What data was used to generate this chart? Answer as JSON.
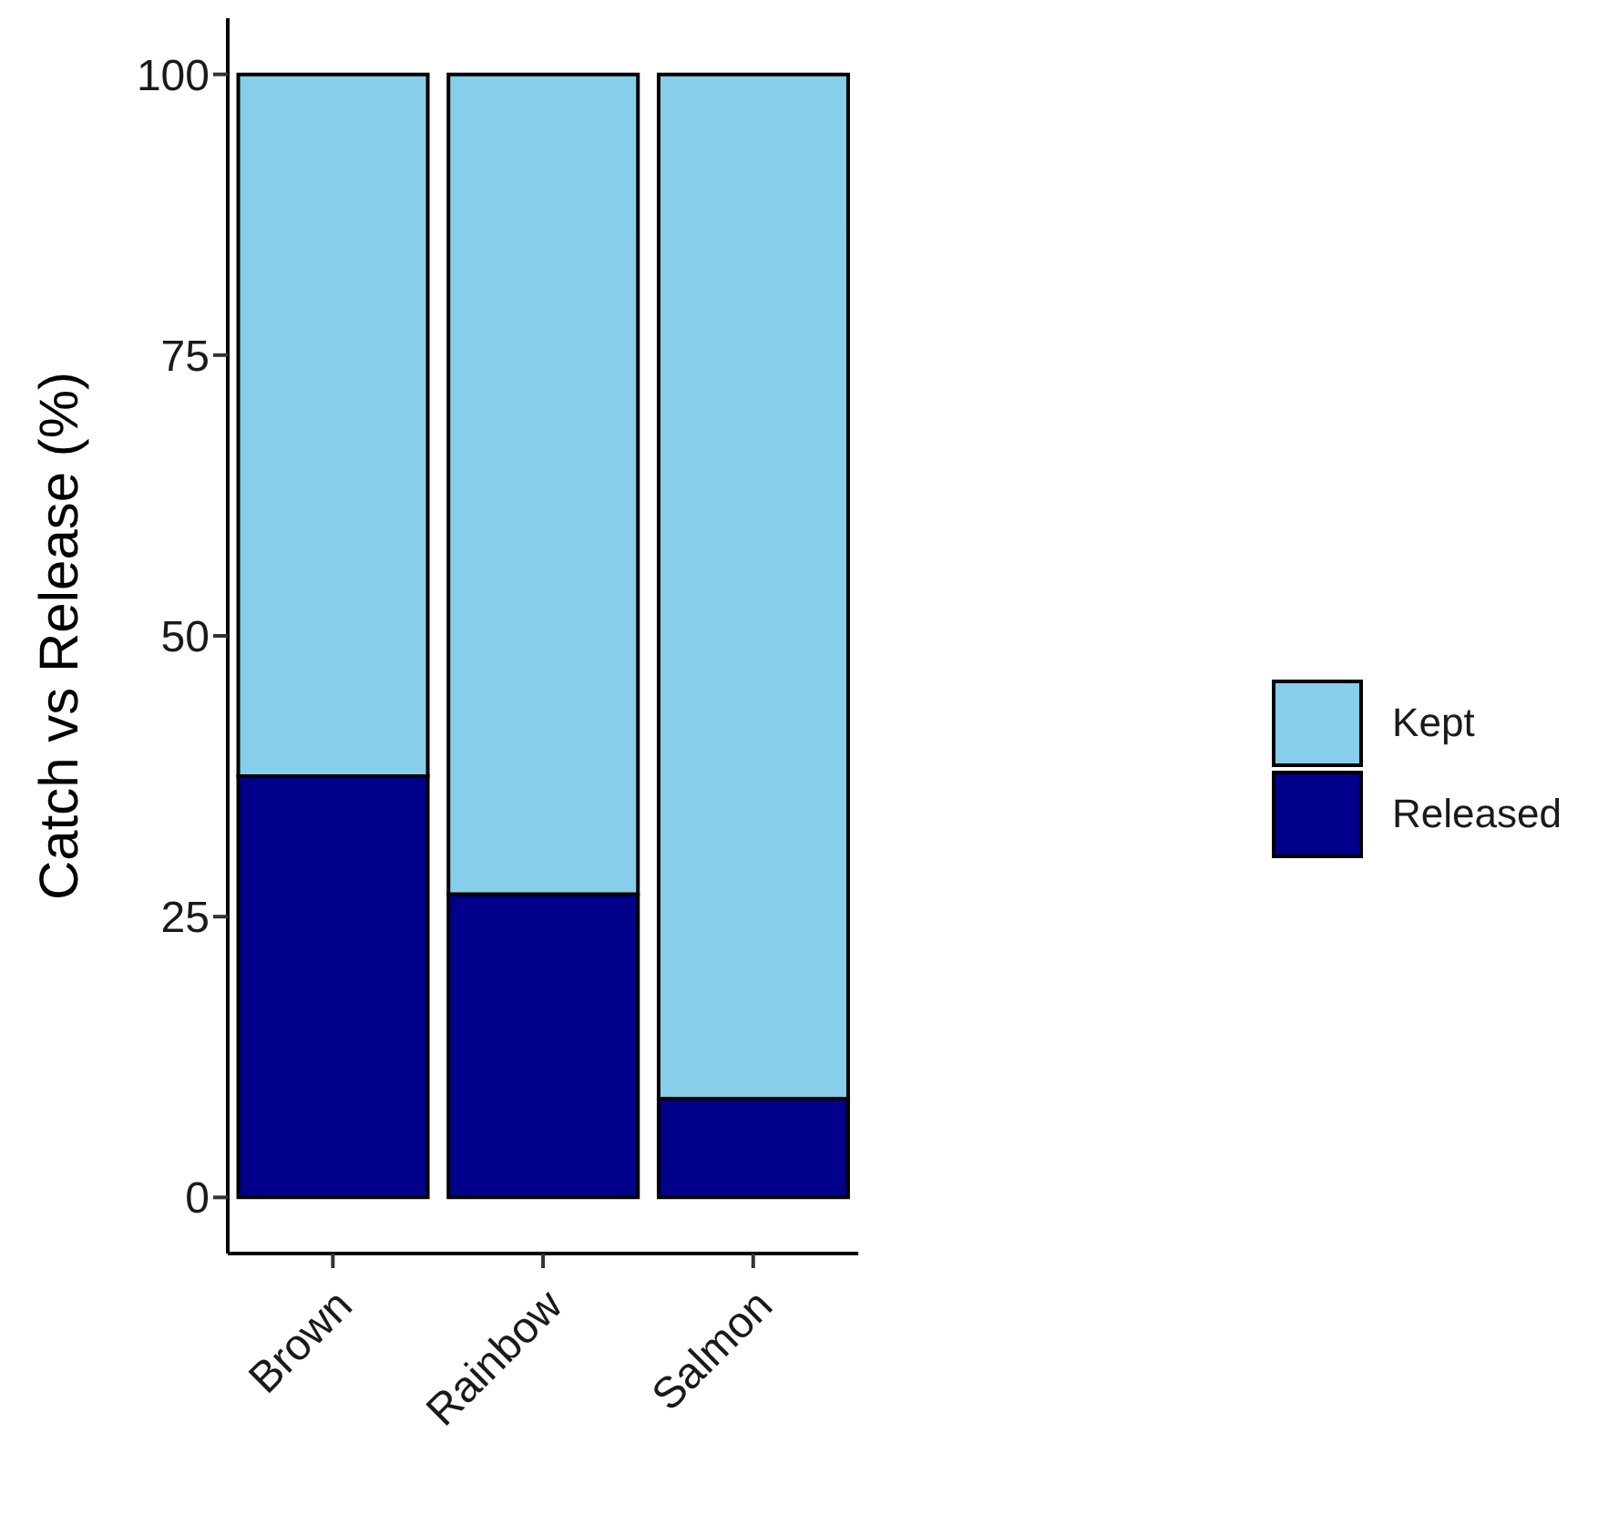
{
  "chart_data": {
    "type": "bar",
    "ylabel": "Catch vs Release (%)",
    "categories": [
      "Brown",
      "Rainbow",
      "Salmon"
    ],
    "stacked": true,
    "series": [
      {
        "name": "Released",
        "color": "#00008b",
        "values": [
          37.5,
          27.0,
          8.8
        ]
      },
      {
        "name": "Kept",
        "color": "#87ceeb",
        "values": [
          62.5,
          73.0,
          91.2
        ]
      }
    ],
    "ylim": [
      -5,
      105
    ],
    "yticks": [
      0,
      25,
      50,
      75,
      100
    ],
    "grid": false,
    "legend": "right"
  }
}
